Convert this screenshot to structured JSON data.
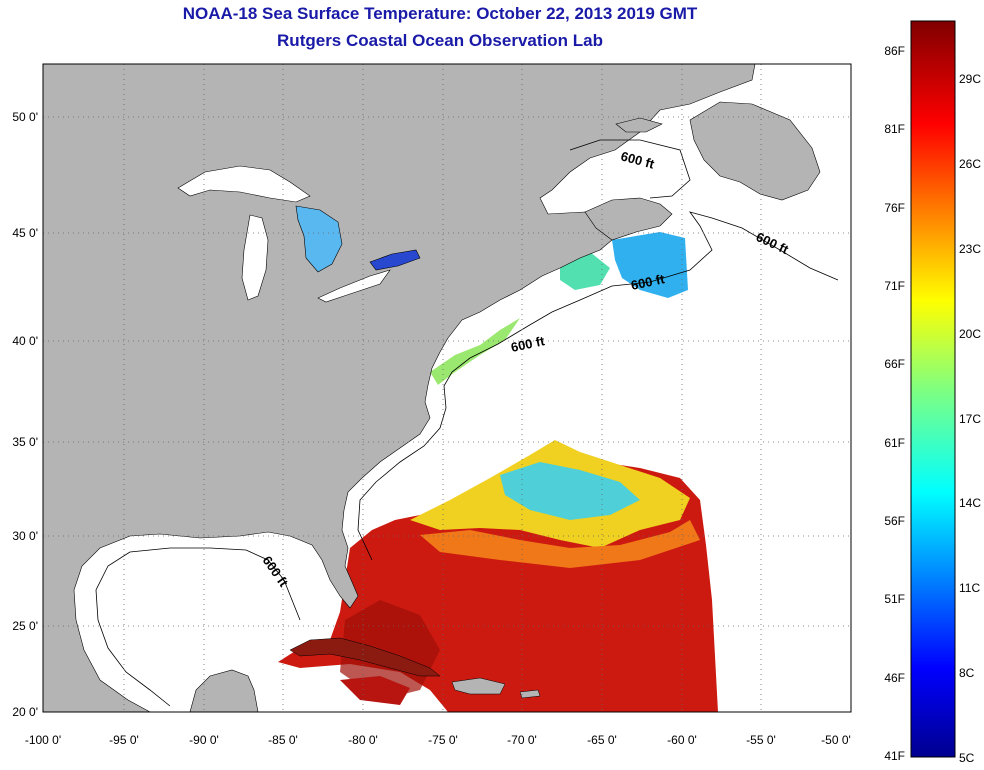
{
  "header": {
    "title": "NOAA-18 Sea Surface Temperature:  October 22, 2013 2019 GMT",
    "subtitle": "Rutgers Coastal Ocean Observation Lab"
  },
  "map": {
    "lon_ticks": [
      "-100 0'",
      "-95 0'",
      "-90 0'",
      "-85 0'",
      "-80 0'",
      "-75 0'",
      "-70 0'",
      "-65 0'",
      "-60 0'",
      "-55 0'",
      "-50 0'"
    ],
    "lat_ticks": [
      "50 0'",
      "45 0'",
      "40 0'",
      "35 0'",
      "30 0'",
      "25 0'",
      "20 0'"
    ],
    "contour_label": "600 ft",
    "colors": {
      "land": "#b4b4b4",
      "ocean_nodata": "#ffffff",
      "warm_water": "#cc1a10",
      "cool_water": "#2aa8e8"
    }
  },
  "colorbar": {
    "fahrenheit_labels": [
      "86F",
      "81F",
      "76F",
      "71F",
      "66F",
      "61F",
      "56F",
      "51F",
      "46F",
      "41F"
    ],
    "celsius_labels": [
      "29C",
      "26C",
      "23C",
      "20C",
      "17C",
      "14C",
      "11C",
      "8C",
      "5C"
    ],
    "range_f": [
      41,
      88
    ],
    "range_c": [
      5,
      31
    ]
  }
}
